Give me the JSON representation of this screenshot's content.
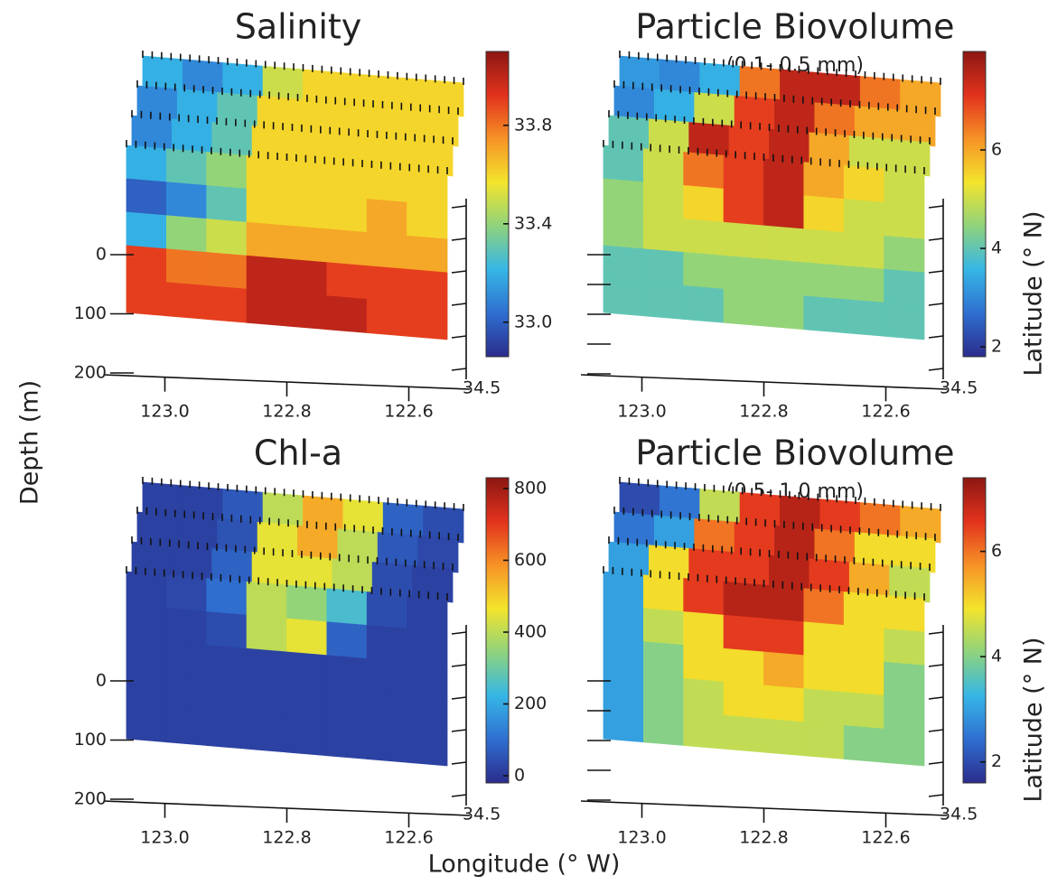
{
  "figure": {
    "y_label": "Depth (m)",
    "x_label": "Longitude (° W)",
    "colormap": [
      "#2b2c8c",
      "#2f6fd0",
      "#36b6e6",
      "#8fd37c",
      "#f3e42c",
      "#f69226",
      "#e2321d",
      "#8c1713"
    ]
  },
  "chart_data": [
    {
      "type": "slices",
      "title": "Salinity",
      "colorbar": {
        "lim": [
          32.86,
          34.1
        ],
        "ticks": [
          {
            "value": 33,
            "label": "33.0"
          },
          33.4,
          33.8
        ]
      },
      "xlim": [
        123.1,
        122.5
      ],
      "xticks": [
        {
          "value": 123,
          "label": "123.0"
        },
        122.8,
        122.6
      ],
      "ylim": [
        0,
        200
      ],
      "yticks": [
        0,
        100,
        200
      ],
      "lat_ticks": [
        34.5
      ],
      "slices": [
        [
          [
            33.2,
            33.1,
            33.2,
            33.5,
            33.6,
            33.6,
            33.6,
            33.6
          ]
        ],
        [
          [
            33.1,
            33.2,
            33.3,
            33.6,
            33.6,
            33.6,
            33.6,
            33.6
          ]
        ],
        [
          [
            33.1,
            33.2,
            33.3,
            33.6,
            33.6,
            33.6,
            33.6,
            33.6
          ]
        ],
        [
          [
            33.2,
            33.3,
            33.4,
            33.6,
            33.6,
            33.6,
            33.6,
            33.6
          ],
          [
            33.0,
            33.1,
            33.3,
            33.6,
            33.6,
            33.6,
            33.7,
            33.6
          ],
          [
            33.2,
            33.4,
            33.5,
            33.7,
            33.7,
            33.7,
            33.7,
            33.7
          ],
          [
            33.9,
            33.8,
            33.8,
            34.0,
            34.0,
            33.9,
            33.9,
            33.9
          ],
          [
            33.9,
            33.9,
            33.9,
            34.0,
            34.0,
            34.0,
            33.9,
            33.9
          ]
        ]
      ]
    },
    {
      "type": "slices",
      "title": "Particle Biovolume",
      "subtitle": "(0.1- 0.5 mm)",
      "latitude_label": "Latitude (° N)",
      "colorbar": {
        "lim": [
          1.8,
          8
        ],
        "ticks": [
          2,
          4,
          6
        ]
      },
      "xlim": [
        123.1,
        122.5
      ],
      "xticks": [
        {
          "value": 123,
          "label": "123.0"
        },
        122.8,
        122.6
      ],
      "lat_ticks": [
        34.5
      ],
      "slices": [
        [
          [
            3.2,
            3,
            3.5,
            6.5,
            7.5,
            7.5,
            6.5,
            6
          ]
        ],
        [
          [
            3,
            3.5,
            5,
            7,
            7.5,
            6.5,
            6,
            6
          ]
        ],
        [
          [
            4,
            5,
            7.5,
            7,
            7.5,
            6,
            5,
            5
          ]
        ],
        [
          [
            4,
            5,
            6.5,
            7,
            7.5,
            6,
            5.5,
            5
          ],
          [
            4.5,
            5,
            5.5,
            7,
            7.5,
            5.5,
            5,
            5
          ],
          [
            4.5,
            5,
            5,
            5,
            5,
            5,
            5,
            4.5
          ],
          [
            4,
            4,
            4.5,
            4.5,
            4.5,
            4.5,
            4.5,
            4
          ],
          [
            4,
            4,
            4,
            4.5,
            4.5,
            4,
            4,
            4
          ]
        ]
      ]
    },
    {
      "type": "slices",
      "title": "Chl-a",
      "colorbar": {
        "lim": [
          -20,
          830
        ],
        "ticks": [
          0,
          200,
          400,
          600,
          800
        ]
      },
      "xlim": [
        123.1,
        122.5
      ],
      "xticks": [
        {
          "value": 123,
          "label": "123.0"
        },
        122.8,
        122.6
      ],
      "ylim": [
        0,
        200
      ],
      "yticks": [
        0,
        100,
        200
      ],
      "lat_ticks": [
        34.5
      ],
      "slices": [
        [
          [
            20,
            20,
            60,
            400,
            550,
            450,
            80,
            40
          ]
        ],
        [
          [
            20,
            20,
            50,
            450,
            550,
            400,
            60,
            30
          ]
        ],
        [
          [
            20,
            20,
            80,
            450,
            450,
            400,
            40,
            20
          ]
        ],
        [
          [
            20,
            30,
            100,
            400,
            350,
            250,
            40,
            20
          ],
          [
            20,
            20,
            40,
            400,
            450,
            80,
            20,
            20
          ],
          [
            20,
            20,
            20,
            20,
            20,
            20,
            20,
            20
          ],
          [
            20,
            20,
            20,
            20,
            20,
            20,
            20,
            20
          ],
          [
            20,
            20,
            20,
            20,
            20,
            20,
            20,
            20
          ]
        ]
      ]
    },
    {
      "type": "slices",
      "title": "Particle Biovolume",
      "subtitle": "(0.5- 1.0 mm)",
      "latitude_label": "Latitude (° N)",
      "colorbar": {
        "lim": [
          1.6,
          7.4
        ],
        "ticks": [
          2,
          4,
          6
        ]
      },
      "xlim": [
        123.1,
        122.5
      ],
      "xticks": [
        {
          "value": 123,
          "label": "123.0"
        },
        122.8,
        122.6
      ],
      "lat_ticks": [
        34.5
      ],
      "slices": [
        [
          [
            2,
            2.5,
            4.5,
            6.5,
            7,
            6.5,
            6,
            5.5
          ]
        ],
        [
          [
            2.5,
            3,
            6,
            6.5,
            7,
            6,
            5,
            5
          ]
        ],
        [
          [
            3,
            5,
            6.5,
            6.5,
            7,
            6.5,
            5.5,
            4.5
          ]
        ],
        [
          [
            3,
            5,
            6.5,
            7,
            7,
            6,
            5,
            5
          ],
          [
            3,
            4.5,
            5,
            6.5,
            6.5,
            5,
            5,
            4.5
          ],
          [
            3,
            4,
            5,
            5,
            5.5,
            5,
            5,
            4
          ],
          [
            3,
            4,
            4.5,
            5,
            5,
            4.5,
            4.5,
            4
          ],
          [
            3,
            4,
            4.5,
            4.5,
            4.5,
            4.5,
            4,
            4
          ]
        ]
      ]
    }
  ]
}
